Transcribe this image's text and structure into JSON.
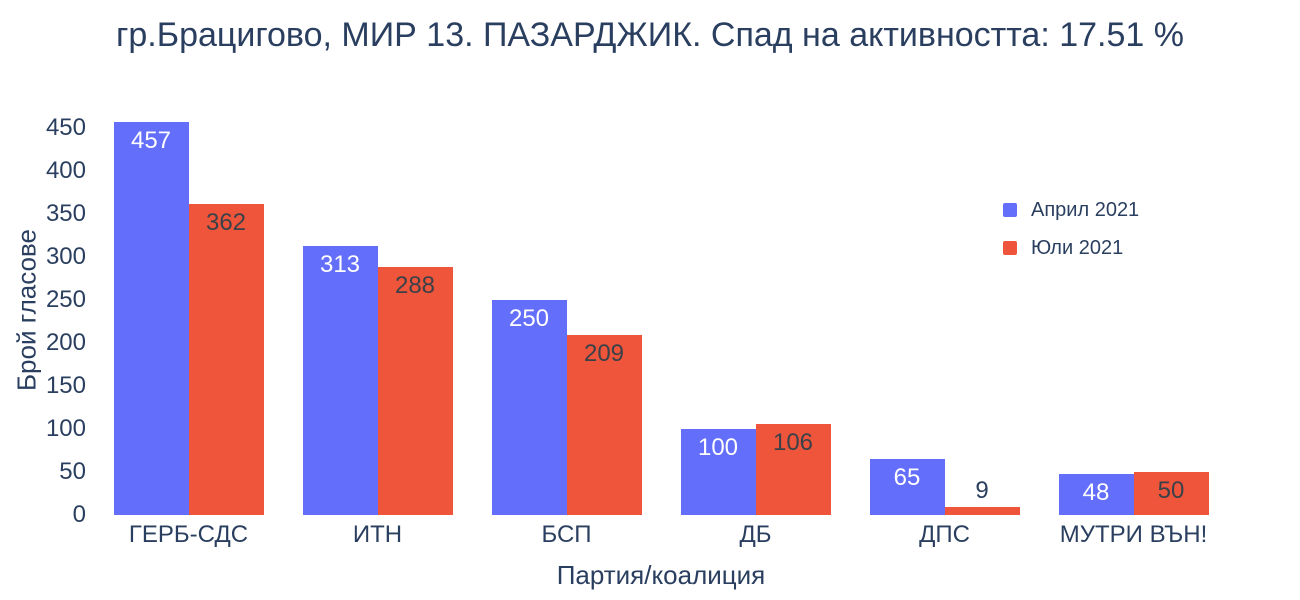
{
  "title": "гр.Брацигово, МИР 13. ПАЗАРДЖИК. Спад на активността: 17.51 %",
  "chart_data": {
    "type": "bar",
    "categories": [
      "ГЕРБ-СДС",
      "ИТН",
      "БСП",
      "ДБ",
      "ДПС",
      "МУТРИ ВЪН!"
    ],
    "series": [
      {
        "name": "Април 2021",
        "color": "#636EFA",
        "values": [
          457,
          313,
          250,
          100,
          65,
          48
        ]
      },
      {
        "name": "Юли 2021",
        "color": "#EF553B",
        "values": [
          362,
          288,
          209,
          106,
          9,
          50
        ]
      }
    ],
    "xlabel": "Партия/коалиция",
    "ylabel": "Брой гласове",
    "ylim": [
      0,
      450
    ],
    "yticks": [
      0,
      50,
      100,
      150,
      200,
      250,
      300,
      350,
      400,
      450
    ],
    "grid": false,
    "legend_position": "top-right-inside",
    "bar_value_labels": "inside-top, outside when bar too short"
  },
  "colors": {
    "background": "#ffffff",
    "axis_text": "#2a3f5f",
    "inside_label_light": "#ffffff",
    "inside_label_dark": "#3b4148",
    "series_april": "#636EFA",
    "series_july": "#EF553B"
  }
}
